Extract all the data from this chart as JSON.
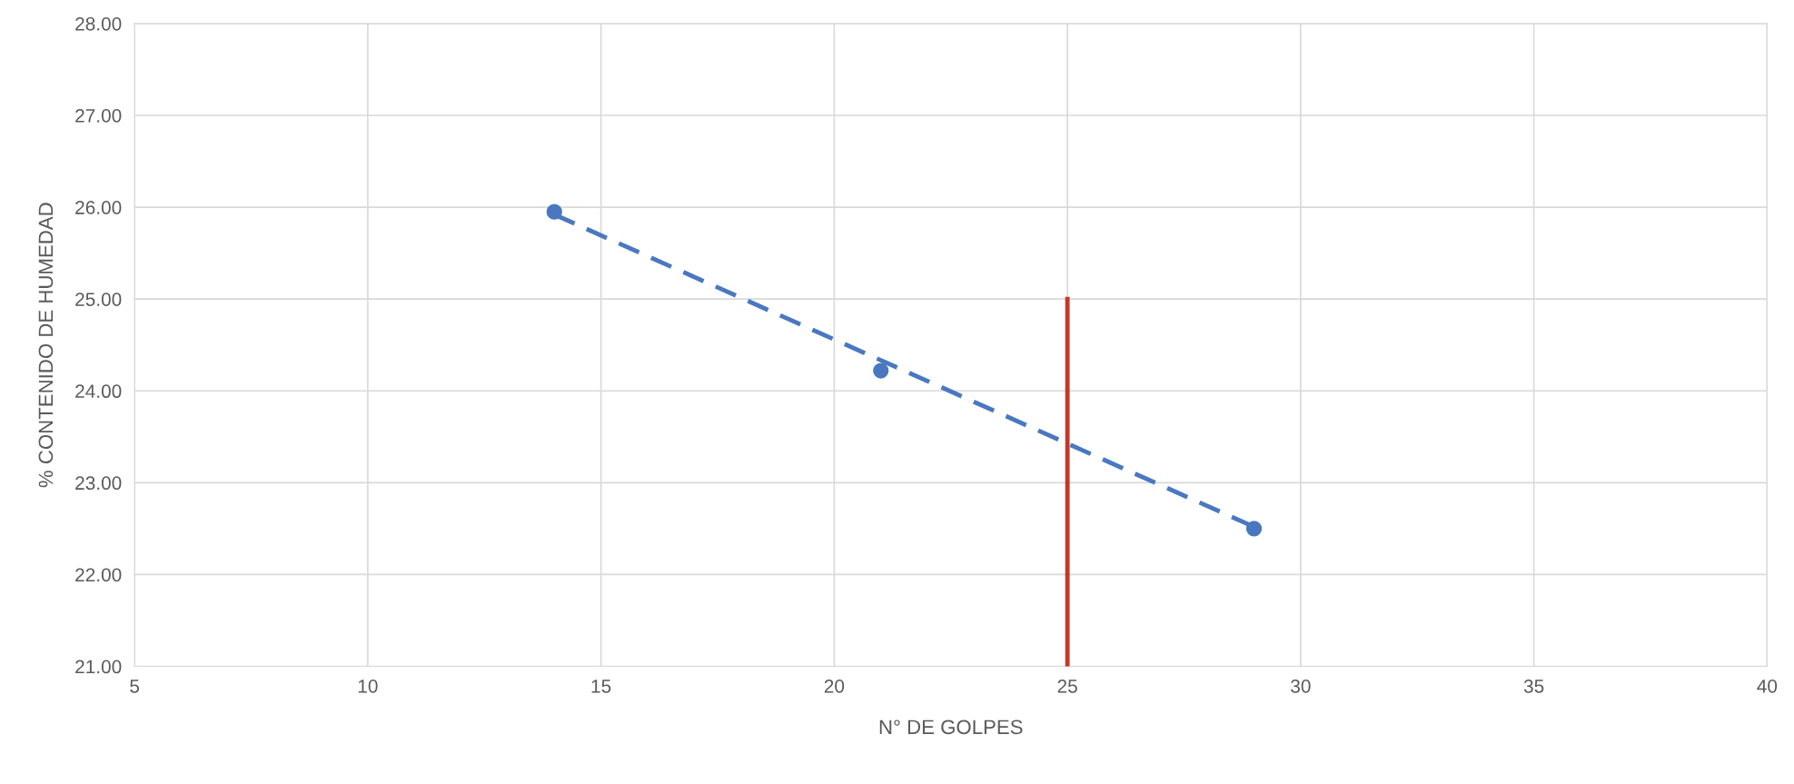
{
  "chart_data": {
    "type": "scatter",
    "xlabel": "N° DE GOLPES",
    "ylabel": "% CONTENIDO DE HUMEDAD",
    "series": [
      {
        "color": "#4a78c0",
        "x": [
          14,
          21,
          29
        ],
        "values": [
          25.95,
          24.22,
          22.5
        ],
        "marker": "circle"
      },
      {
        "type": "line",
        "color": "#4a78c0",
        "x": [
          14,
          29
        ],
        "values": [
          25.92,
          22.52
        ],
        "line_style": "dashed",
        "marker": "none"
      },
      {
        "type": "line",
        "color": "#c0392b",
        "x": [
          25,
          25
        ],
        "values": [
          21,
          25
        ],
        "line_style": "solid",
        "marker": "none"
      }
    ],
    "xlim": [
      5,
      40
    ],
    "xticks": [
      5,
      10,
      15,
      20,
      25,
      30,
      35,
      40
    ],
    "ylim": [
      21,
      28
    ],
    "yticks": [
      {
        "value": 21,
        "label": "21.00"
      },
      {
        "value": 22,
        "label": "22.00"
      },
      {
        "value": 23,
        "label": "23.00"
      },
      {
        "value": 24,
        "label": "24.00"
      },
      {
        "value": 25,
        "label": "25.00"
      },
      {
        "value": 26,
        "label": "26.00"
      },
      {
        "value": 27,
        "label": "27.00"
      },
      {
        "value": 28,
        "label": "28.00"
      }
    ],
    "grid": true,
    "legend": false
  }
}
